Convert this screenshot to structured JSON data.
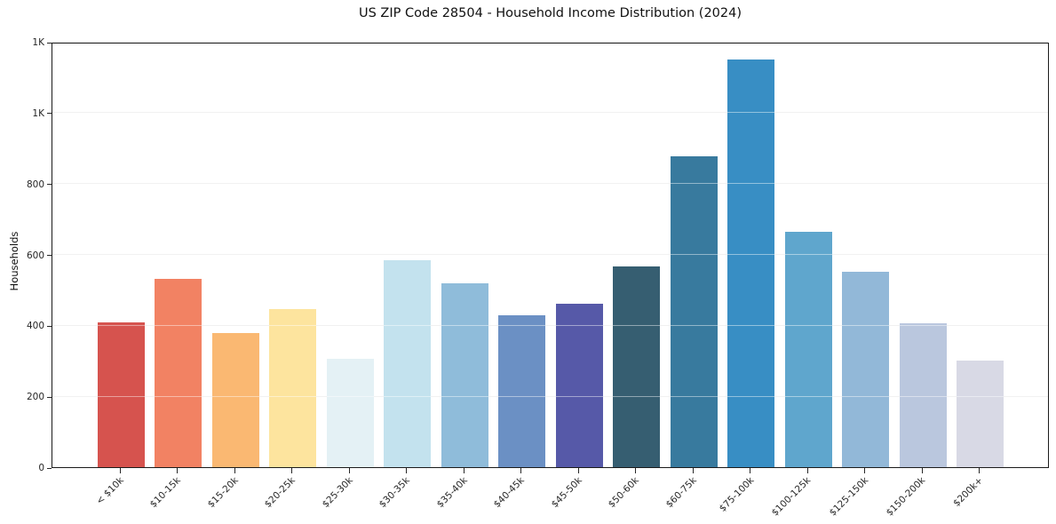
{
  "chart_data": {
    "type": "bar",
    "title": "US ZIP Code 28504 - Household Income Distribution (2024)",
    "xlabel": "",
    "ylabel": "Households",
    "categories": [
      "< $10k",
      "$10-15k",
      "$15-20k",
      "$20-25k",
      "$25-30k",
      "$30-35k",
      "$35-40k",
      "$40-45k",
      "$45-50k",
      "$50-60k",
      "$60-75k",
      "$75-100k",
      "$100-125k",
      "$125-150k",
      "$150-200k",
      "$200k+"
    ],
    "values": [
      408,
      530,
      379,
      446,
      305,
      585,
      519,
      429,
      461,
      565,
      877,
      1151,
      665,
      551,
      405,
      300
    ],
    "bar_colors": [
      "#d6534e",
      "#f28263",
      "#fab872",
      "#fde49e",
      "#e4f1f5",
      "#c3e2ee",
      "#8fbcda",
      "#6b90c4",
      "#5659a8",
      "#365e71",
      "#387a9e",
      "#388ec4",
      "#5fa6cd",
      "#92b8d8",
      "#bac7de",
      "#d8d9e5"
    ],
    "ylim": [
      0,
      1200
    ],
    "yticks": {
      "values": [
        0,
        200,
        400,
        600,
        800,
        1000,
        1200
      ],
      "labels": [
        "0",
        "200",
        "400",
        "600",
        "800",
        "1K",
        "1K"
      ]
    },
    "grid": "horizontal-only",
    "legend_position": "none",
    "background_color": "#ffffff",
    "axis_color": "#1b1b1b",
    "gridline_color": "#e5e5e5",
    "bar_width_ratio": 0.82
  }
}
